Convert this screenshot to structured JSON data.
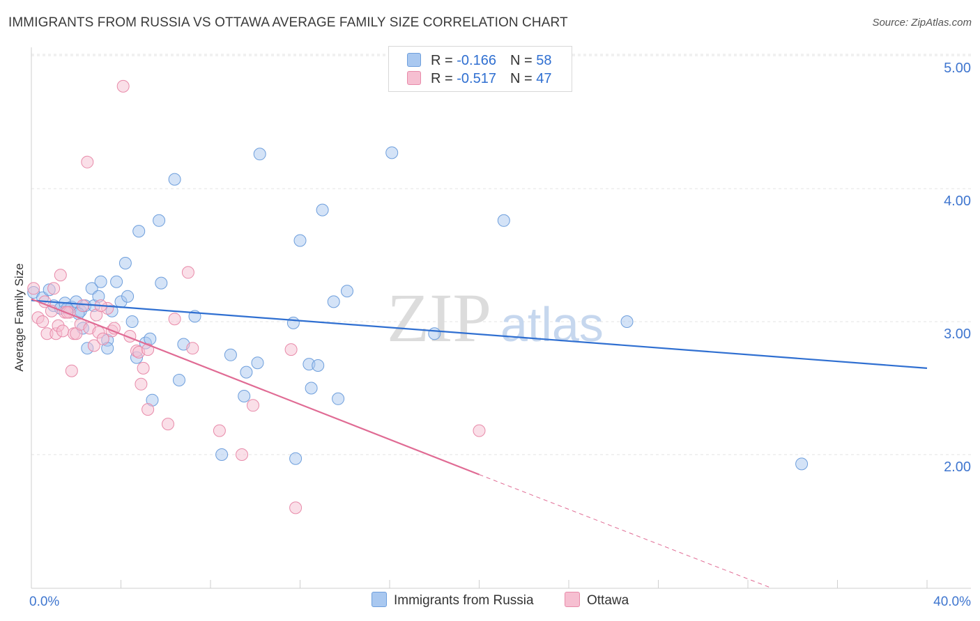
{
  "header": {
    "title": "IMMIGRANTS FROM RUSSIA VS OTTAWA AVERAGE FAMILY SIZE CORRELATION CHART",
    "source": "Source: ZipAtlas.com"
  },
  "legend": {
    "rows": [
      {
        "r_label": "R = ",
        "r_value": "-0.166",
        "n_label": "N = ",
        "n_value": "58"
      },
      {
        "r_label": "R = ",
        "r_value": "-0.517",
        "n_label": "N = ",
        "n_value": "47"
      }
    ]
  },
  "bottom_legend": [
    "Immigrants from Russia",
    "Ottawa"
  ],
  "colors": {
    "blue_fill": "#a9c8f0",
    "blue_stroke": "#6d9edc",
    "blue_line": "#2f6fd1",
    "pink_fill": "#f6bfd1",
    "pink_stroke": "#e88aa9",
    "pink_line": "#e06b94",
    "axis_text": "#3f76cf",
    "grid": "#e3e3e3"
  },
  "chart_data": {
    "type": "scatter",
    "title": "IMMIGRANTS FROM RUSSIA VS OTTAWA AVERAGE FAMILY SIZE CORRELATION CHART",
    "xlabel": "",
    "ylabel": "Average Family Size",
    "xlim": [
      0,
      40
    ],
    "ylim": [
      1.05,
      5.25
    ],
    "x_tick_labels": [
      "0.0%",
      "40.0%"
    ],
    "y_ticks": [
      2.0,
      3.0,
      4.0,
      5.0
    ],
    "y_tick_labels": [
      "2.00",
      "3.00",
      "4.00",
      "5.00"
    ],
    "grid": true,
    "legend_position": "top-center",
    "watermark": "ZIPatlas",
    "series": [
      {
        "name": "Immigrants from Russia",
        "r": -0.166,
        "n": 58,
        "trend": [
          [
            0,
            3.16
          ],
          [
            40,
            2.65
          ]
        ],
        "points": [
          [
            0.1,
            3.22
          ],
          [
            0.5,
            3.18
          ],
          [
            0.8,
            3.24
          ],
          [
            1.0,
            3.12
          ],
          [
            1.3,
            3.1
          ],
          [
            1.5,
            3.14
          ],
          [
            1.8,
            3.11
          ],
          [
            2.0,
            3.15
          ],
          [
            2.2,
            3.08
          ],
          [
            2.4,
            3.12
          ],
          [
            2.3,
            2.95
          ],
          [
            2.5,
            2.8
          ],
          [
            2.7,
            3.25
          ],
          [
            2.8,
            3.12
          ],
          [
            3.0,
            3.19
          ],
          [
            3.1,
            3.3
          ],
          [
            3.4,
            2.86
          ],
          [
            3.4,
            2.8
          ],
          [
            3.8,
            3.3
          ],
          [
            4.0,
            3.15
          ],
          [
            4.2,
            3.44
          ],
          [
            4.3,
            3.19
          ],
          [
            4.5,
            3.0
          ],
          [
            4.7,
            2.73
          ],
          [
            4.8,
            3.68
          ],
          [
            5.1,
            2.84
          ],
          [
            5.3,
            2.87
          ],
          [
            5.4,
            2.41
          ],
          [
            5.7,
            3.76
          ],
          [
            5.8,
            3.29
          ],
          [
            6.4,
            4.07
          ],
          [
            6.6,
            2.56
          ],
          [
            6.8,
            2.83
          ],
          [
            7.3,
            3.04
          ],
          [
            8.5,
            2.0
          ],
          [
            8.9,
            2.75
          ],
          [
            9.5,
            2.44
          ],
          [
            9.6,
            2.62
          ],
          [
            10.1,
            2.69
          ],
          [
            10.2,
            4.26
          ],
          [
            11.7,
            2.99
          ],
          [
            11.8,
            1.97
          ],
          [
            12.0,
            3.61
          ],
          [
            12.4,
            2.68
          ],
          [
            12.5,
            2.5
          ],
          [
            12.8,
            2.67
          ],
          [
            13.0,
            3.84
          ],
          [
            13.5,
            3.15
          ],
          [
            13.7,
            2.42
          ],
          [
            14.1,
            3.23
          ],
          [
            16.1,
            4.27
          ],
          [
            18.0,
            2.91
          ],
          [
            21.1,
            3.76
          ],
          [
            26.6,
            3.0
          ],
          [
            34.4,
            1.93
          ],
          [
            1.6,
            3.1
          ],
          [
            2.1,
            3.06
          ],
          [
            3.6,
            3.08
          ]
        ]
      },
      {
        "name": "Ottawa",
        "r": -0.517,
        "n": 47,
        "trend": [
          [
            0,
            3.17
          ],
          [
            20,
            1.85
          ]
        ],
        "trend_dashed": [
          [
            20,
            1.85
          ],
          [
            33,
            1.0
          ]
        ],
        "points": [
          [
            0.1,
            3.25
          ],
          [
            0.3,
            3.03
          ],
          [
            0.5,
            3.0
          ],
          [
            0.7,
            2.91
          ],
          [
            0.9,
            3.08
          ],
          [
            1.0,
            3.25
          ],
          [
            1.1,
            2.91
          ],
          [
            1.2,
            2.97
          ],
          [
            1.3,
            3.35
          ],
          [
            1.4,
            2.93
          ],
          [
            1.5,
            3.07
          ],
          [
            1.7,
            3.07
          ],
          [
            1.8,
            2.63
          ],
          [
            1.9,
            2.91
          ],
          [
            2.0,
            2.91
          ],
          [
            2.2,
            2.98
          ],
          [
            2.3,
            3.12
          ],
          [
            2.6,
            2.95
          ],
          [
            2.5,
            4.2
          ],
          [
            2.8,
            2.82
          ],
          [
            2.9,
            3.05
          ],
          [
            3.0,
            2.92
          ],
          [
            3.2,
            2.87
          ],
          [
            3.4,
            3.1
          ],
          [
            3.6,
            2.93
          ],
          [
            3.7,
            2.95
          ],
          [
            4.1,
            4.77
          ],
          [
            4.7,
            2.78
          ],
          [
            4.8,
            2.77
          ],
          [
            4.9,
            2.53
          ],
          [
            5.0,
            2.65
          ],
          [
            5.2,
            2.79
          ],
          [
            5.2,
            2.34
          ],
          [
            6.1,
            2.23
          ],
          [
            6.4,
            3.02
          ],
          [
            7.0,
            3.37
          ],
          [
            7.2,
            2.8
          ],
          [
            8.4,
            2.18
          ],
          [
            9.4,
            2.0
          ],
          [
            9.9,
            2.37
          ],
          [
            11.6,
            2.79
          ],
          [
            11.8,
            1.6
          ],
          [
            20.0,
            2.18
          ],
          [
            0.6,
            3.15
          ],
          [
            1.6,
            3.07
          ],
          [
            3.1,
            3.12
          ],
          [
            4.4,
            2.89
          ]
        ]
      }
    ]
  }
}
